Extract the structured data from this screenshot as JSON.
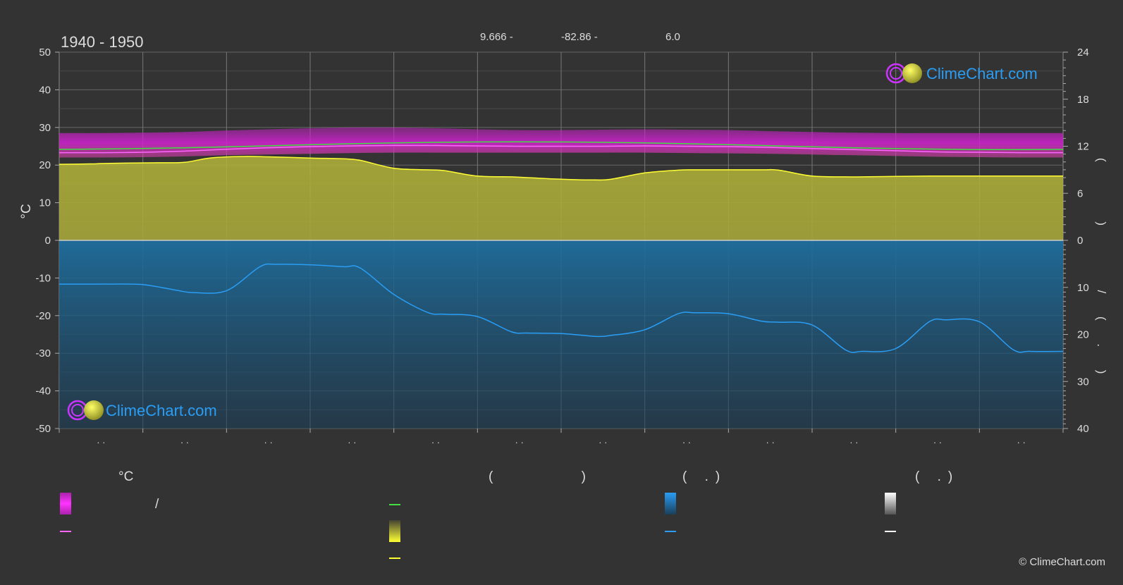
{
  "period": "1940 - 1950",
  "coords": {
    "lat": "9.666 -",
    "lon": "-82.86 -",
    "elev": "6.0"
  },
  "brand": {
    "logo_text": "ClimeChart.com",
    "copyright": "© ClimeChart.com"
  },
  "colors": {
    "background": "#333333",
    "temp_band": "#cc22cc",
    "temp_mean_line": "#ff66ff",
    "daylight_line": "#44dd44",
    "sunshine_fill": "#b5b53a",
    "sunshine_line": "#ffff33",
    "rain_fill": "#1e6e9e",
    "rain_line": "#2a9df4",
    "brand_blue": "#2a9df4"
  },
  "legend": {
    "temperature": {
      "header": "°C",
      "separator": "/"
    },
    "sun": {
      "header": "( )"
    },
    "rain": {
      "header": "( .)"
    },
    "snow": {
      "header": "( .)"
    }
  },
  "chart_data": {
    "type": "area",
    "title": "1940 - 1950",
    "ylabel_left": "°C",
    "ylim_left": [
      -50,
      50
    ],
    "yticks_left": [
      50,
      40,
      30,
      20,
      10,
      0,
      -10,
      -20,
      -30,
      -40,
      -50
    ],
    "ylim_right_top": [
      0,
      24
    ],
    "yticks_right_top": [
      24,
      18,
      12,
      6,
      0
    ],
    "ylabel_right_top": "( )",
    "ylim_right_bottom": [
      0,
      40
    ],
    "yticks_right_bottom": [
      10,
      20,
      30,
      40
    ],
    "ylabel_right_bottom": "/ ( . )",
    "x_months": 12,
    "xtick_labels": [
      "· ·",
      "· ·",
      "· ·",
      "· ·",
      "· ·",
      "· ·",
      "· ·",
      "· ·",
      "· ·",
      "· ·",
      "· ·",
      "· ·"
    ],
    "grid": true,
    "series": [
      {
        "key": "temp_max_band",
        "unit": "°C",
        "x": [
          0,
          0.5,
          1,
          1.5,
          2,
          2.5,
          3,
          3.5,
          4,
          4.5,
          5,
          5.5,
          6,
          6.5,
          7,
          7.5,
          8,
          8.5,
          9,
          9.5,
          10,
          10.5,
          11,
          11.5,
          12
        ],
        "y": [
          28.5,
          28.5,
          28.6,
          28.8,
          29.2,
          29.5,
          29.8,
          30.0,
          30.0,
          29.8,
          29.5,
          29.3,
          29.3,
          29.4,
          29.5,
          29.4,
          29.3,
          29.0,
          28.8,
          28.6,
          28.5,
          28.5,
          28.5,
          28.5,
          28.5
        ]
      },
      {
        "key": "temp_min_band",
        "unit": "°C",
        "x": [
          0,
          0.5,
          1,
          1.5,
          2,
          2.5,
          3,
          3.5,
          4,
          4.5,
          5,
          5.5,
          6,
          6.5,
          7,
          7.5,
          8,
          8.5,
          9,
          9.5,
          10,
          10.5,
          11,
          11.5,
          12
        ],
        "y": [
          22.0,
          22.0,
          22.1,
          22.3,
          22.6,
          22.8,
          23.0,
          23.2,
          23.3,
          23.3,
          23.3,
          23.3,
          23.3,
          23.3,
          23.3,
          23.2,
          23.1,
          23.0,
          22.8,
          22.6,
          22.4,
          22.2,
          22.1,
          22.0,
          22.0
        ]
      },
      {
        "key": "temp_mean",
        "unit": "°C",
        "x": [
          0,
          0.5,
          1,
          1.5,
          2,
          2.5,
          3,
          3.5,
          4,
          4.5,
          5,
          5.5,
          6,
          6.5,
          7,
          7.5,
          8,
          8.5,
          9,
          9.5,
          10,
          10.5,
          11,
          11.5,
          12
        ],
        "y": [
          23.3,
          23.3,
          23.4,
          23.7,
          24.2,
          24.6,
          24.9,
          25.1,
          25.2,
          25.2,
          25.1,
          25.0,
          25.0,
          25.0,
          25.1,
          25.0,
          24.9,
          24.7,
          24.4,
          24.1,
          23.8,
          23.5,
          23.4,
          23.3,
          23.3
        ]
      },
      {
        "key": "daylight_hours",
        "unit": "h",
        "x": [
          0,
          0.5,
          1,
          1.5,
          2,
          2.5,
          3,
          3.5,
          4,
          4.5,
          5,
          5.5,
          6,
          6.5,
          7,
          7.5,
          8,
          8.5,
          9,
          9.5,
          10,
          10.5,
          11,
          11.5,
          12
        ],
        "y": [
          11.6,
          11.65,
          11.72,
          11.8,
          11.92,
          12.05,
          12.2,
          12.32,
          12.42,
          12.5,
          12.55,
          12.56,
          12.55,
          12.5,
          12.42,
          12.32,
          12.2,
          12.07,
          11.93,
          11.8,
          11.7,
          11.63,
          11.58,
          11.57,
          11.6
        ]
      },
      {
        "key": "sunshine_hours",
        "unit": "h",
        "x": [
          0,
          0.4,
          0.5,
          0.8,
          1.2,
          1.5,
          1.8,
          2.2,
          2.5,
          3,
          3.4,
          3.6,
          4.0,
          4.4,
          4.6,
          5.0,
          5.4,
          5.6,
          6.0,
          6.4,
          6.6,
          7.0,
          7.4,
          7.6,
          8.0,
          8.4,
          8.6,
          9.0,
          9.4,
          9.6,
          10.0,
          10.4,
          10.6,
          11.0,
          11.4,
          11.6,
          12
        ],
        "y": [
          9.7,
          9.75,
          9.8,
          9.85,
          9.9,
          9.95,
          10.5,
          10.7,
          10.65,
          10.5,
          10.4,
          10.2,
          9.2,
          9.0,
          8.9,
          8.2,
          8.1,
          8.0,
          7.8,
          7.7,
          7.8,
          8.6,
          8.95,
          9.0,
          9.0,
          9.0,
          8.95,
          8.2,
          8.1,
          8.1,
          8.15,
          8.2,
          8.2,
          8.2,
          8.2,
          8.2,
          8.2
        ]
      },
      {
        "key": "precip_line",
        "unit": "mm",
        "x": [
          0,
          0.4,
          0.6,
          1.0,
          1.4,
          1.6,
          2.0,
          2.4,
          2.6,
          3.0,
          3.4,
          3.6,
          4.0,
          4.4,
          4.6,
          5.0,
          5.4,
          5.6,
          6.0,
          6.4,
          6.6,
          7.0,
          7.4,
          7.6,
          8.0,
          8.4,
          8.6,
          9.0,
          9.4,
          9.6,
          10.0,
          10.4,
          10.6,
          11.0,
          11.4,
          11.6,
          12
        ],
        "y": [
          9.3,
          9.3,
          9.3,
          9.4,
          10.6,
          11.1,
          10.7,
          5.6,
          5.1,
          5.2,
          5.6,
          5.9,
          11.5,
          15.3,
          15.7,
          16.2,
          19.4,
          19.7,
          19.8,
          20.4,
          20.2,
          19.0,
          15.6,
          15.4,
          15.6,
          17.2,
          17.4,
          18.0,
          23.3,
          23.6,
          23.0,
          17.3,
          16.9,
          17.3,
          23.2,
          23.6,
          23.6
        ]
      }
    ]
  }
}
